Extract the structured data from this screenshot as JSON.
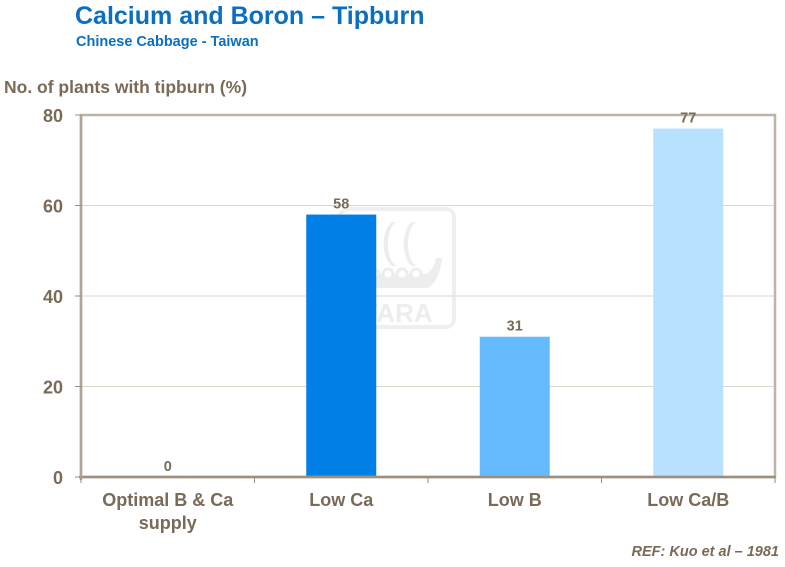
{
  "header": {
    "title": "Calcium and Boron – Tipburn",
    "subtitle": "Chinese Cabbage - Taiwan"
  },
  "watermark": {
    "text": "YARA",
    "icon": "yara-viking-ship-logo-icon"
  },
  "footer": {
    "reference": "REF: Kuo et al – 1981"
  },
  "colors": {
    "title": "#0a6fc2",
    "axis_text": "#7a6a58",
    "border": "#bdb3a8",
    "gridline": "#ddd6cd",
    "axis_line": "#9e8e7c",
    "bars": [
      "#0080e6",
      "#0080e6",
      "#66bbff",
      "#b8e0ff"
    ]
  },
  "chart_data": {
    "type": "bar",
    "title": "Calcium and Boron – Tipburn",
    "subtitle": "Chinese Cabbage - Taiwan",
    "xlabel": "",
    "ylabel": "No. of plants with tipburn (%)",
    "categories": [
      "Optimal B & Ca supply",
      "Low Ca",
      "Low B",
      "Low Ca/B"
    ],
    "category_lines": [
      [
        "Optimal B & Ca",
        "supply"
      ],
      [
        "Low Ca"
      ],
      [
        "Low B"
      ],
      [
        "Low Ca/B"
      ]
    ],
    "values": [
      0,
      58,
      31,
      77
    ],
    "data_labels": [
      "0",
      "58",
      "31",
      "77"
    ],
    "ylim": [
      0,
      80
    ],
    "yticks": [
      0,
      20,
      40,
      60,
      80
    ],
    "grid": true,
    "legend": null,
    "annotations": [
      "REF: Kuo et al – 1981"
    ]
  }
}
